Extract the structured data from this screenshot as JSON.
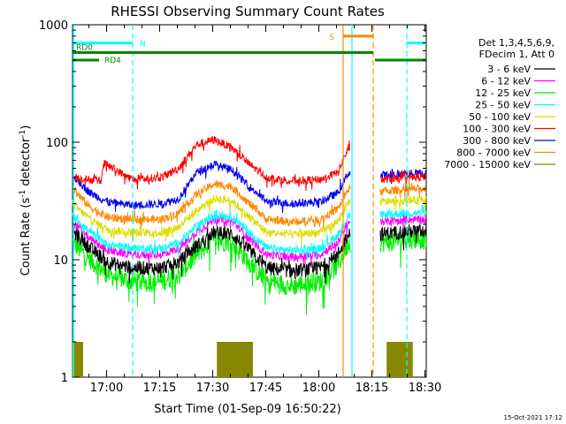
{
  "chart_data": {
    "type": "line",
    "title": "RHESSI Observing Summary Count Rates",
    "xlabel": "Start Time (01-Sep-09 16:50:22)",
    "ylabel": "Count Rate (s⁻¹ detector⁻¹)",
    "ylabel_parts": {
      "base": "Count Rate (s",
      "sup1": "-1",
      "mid": " detector",
      "sup2": "-1",
      "end": ")"
    },
    "yscale": "log",
    "ylim": [
      1,
      1000
    ],
    "xlim_minutes": [
      0,
      100
    ],
    "x_ticks": [
      {
        "minute": 9.63,
        "label": "17:00"
      },
      {
        "minute": 24.63,
        "label": "17:15"
      },
      {
        "minute": 39.63,
        "label": "17:30"
      },
      {
        "minute": 54.63,
        "label": "17:45"
      },
      {
        "minute": 69.63,
        "label": "18:00"
      },
      {
        "minute": 84.63,
        "label": "18:15"
      },
      {
        "minute": 99.63,
        "label": "18:30"
      }
    ],
    "y_ticks": [
      {
        "value": 1,
        "label": "1"
      },
      {
        "value": 10,
        "label": "10"
      },
      {
        "value": 100,
        "label": "100"
      },
      {
        "value": 1000,
        "label": "1000"
      }
    ],
    "legend": {
      "position": "right",
      "header": [
        "Det 1,3,4,5,6,9,",
        "FDecim 1, Att 0"
      ]
    },
    "gaps_minutes": [
      [
        78.5,
        87.0
      ]
    ],
    "series": [
      {
        "name": "3 - 6 keV",
        "color": "#000000",
        "points": [
          [
            0,
            17.5
          ],
          [
            5,
            12.5
          ],
          [
            10,
            9.5
          ],
          [
            17,
            8.5
          ],
          [
            25,
            8.5
          ],
          [
            30,
            9.5
          ],
          [
            35,
            13
          ],
          [
            40,
            17
          ],
          [
            45,
            16.5
          ],
          [
            50,
            12
          ],
          [
            55,
            8.5
          ],
          [
            62,
            8
          ],
          [
            70,
            8.5
          ],
          [
            75,
            11
          ],
          [
            78,
            17
          ],
          [
            87,
            16.5
          ],
          [
            95,
            17.5
          ]
        ]
      },
      {
        "name": "6 - 12 keV",
        "color": "#ff00ff",
        "points": [
          [
            0,
            21
          ],
          [
            5,
            15
          ],
          [
            10,
            12
          ],
          [
            17,
            11
          ],
          [
            25,
            11
          ],
          [
            30,
            12.5
          ],
          [
            35,
            17
          ],
          [
            40,
            22
          ],
          [
            45,
            21.5
          ],
          [
            50,
            15
          ],
          [
            55,
            11
          ],
          [
            62,
            10.5
          ],
          [
            70,
            11
          ],
          [
            75,
            14
          ],
          [
            78,
            21
          ],
          [
            87,
            21
          ],
          [
            95,
            22
          ]
        ]
      },
      {
        "name": "12 - 25 keV",
        "color": "#00ee00",
        "points": [
          [
            0,
            14
          ],
          [
            5,
            10
          ],
          [
            10,
            7.5
          ],
          [
            17,
            6.5
          ],
          [
            25,
            6.5
          ],
          [
            30,
            7.5
          ],
          [
            35,
            11
          ],
          [
            40,
            15
          ],
          [
            45,
            14
          ],
          [
            50,
            9.5
          ],
          [
            55,
            6.5
          ],
          [
            62,
            6
          ],
          [
            70,
            6.5
          ],
          [
            75,
            9
          ],
          [
            78,
            14
          ],
          [
            87,
            14
          ],
          [
            95,
            15
          ]
        ]
      },
      {
        "name": "25 - 50 keV",
        "color": "#00ffff",
        "points": [
          [
            0,
            24
          ],
          [
            5,
            17
          ],
          [
            10,
            13.5
          ],
          [
            17,
            12.5
          ],
          [
            25,
            12.5
          ],
          [
            30,
            14
          ],
          [
            35,
            19
          ],
          [
            40,
            24
          ],
          [
            45,
            23.5
          ],
          [
            50,
            17
          ],
          [
            55,
            12.5
          ],
          [
            62,
            12
          ],
          [
            70,
            12.5
          ],
          [
            75,
            16
          ],
          [
            78,
            24
          ],
          [
            87,
            24
          ],
          [
            95,
            25
          ]
        ]
      },
      {
        "name": "50 - 100 keV",
        "color": "#dddd00",
        "points": [
          [
            0,
            30
          ],
          [
            5,
            22
          ],
          [
            10,
            18
          ],
          [
            17,
            17
          ],
          [
            25,
            17
          ],
          [
            30,
            19
          ],
          [
            35,
            26
          ],
          [
            40,
            33
          ],
          [
            45,
            32
          ],
          [
            50,
            23
          ],
          [
            55,
            17
          ],
          [
            62,
            16.5
          ],
          [
            70,
            17
          ],
          [
            75,
            21
          ],
          [
            78,
            31
          ],
          [
            87,
            31
          ],
          [
            95,
            32
          ]
        ]
      },
      {
        "name": "100 - 300 keV",
        "color": "#ff0000",
        "points": [
          [
            0,
            50
          ],
          [
            5,
            48
          ],
          [
            8,
            47
          ],
          [
            9,
            66
          ],
          [
            17,
            48
          ],
          [
            25,
            50
          ],
          [
            30,
            60
          ],
          [
            35,
            95
          ],
          [
            40,
            105
          ],
          [
            45,
            90
          ],
          [
            50,
            65
          ],
          [
            55,
            50
          ],
          [
            62,
            47
          ],
          [
            70,
            48
          ],
          [
            75,
            55
          ],
          [
            78,
            90
          ],
          [
            87,
            48
          ],
          [
            95,
            50
          ]
        ]
      },
      {
        "name": "300 - 800 keV",
        "color": "#0000ee",
        "points": [
          [
            0,
            52
          ],
          [
            5,
            37
          ],
          [
            10,
            31
          ],
          [
            17,
            29
          ],
          [
            25,
            30
          ],
          [
            30,
            33
          ],
          [
            35,
            55
          ],
          [
            40,
            65
          ],
          [
            45,
            58
          ],
          [
            50,
            42
          ],
          [
            55,
            31
          ],
          [
            62,
            30
          ],
          [
            70,
            31
          ],
          [
            75,
            37
          ],
          [
            78,
            55
          ],
          [
            87,
            52
          ],
          [
            95,
            54
          ]
        ]
      },
      {
        "name": "800 - 7000 keV",
        "color": "#ff8800",
        "points": [
          [
            0,
            40
          ],
          [
            5,
            28
          ],
          [
            10,
            23
          ],
          [
            17,
            22
          ],
          [
            25,
            22
          ],
          [
            30,
            25
          ],
          [
            35,
            36
          ],
          [
            40,
            44
          ],
          [
            45,
            42
          ],
          [
            50,
            30
          ],
          [
            55,
            22
          ],
          [
            62,
            21
          ],
          [
            70,
            22
          ],
          [
            75,
            27
          ],
          [
            78,
            40
          ],
          [
            87,
            38
          ],
          [
            95,
            40
          ]
        ]
      },
      {
        "name": "7000 - 15000 keV",
        "color": "#888800",
        "points": []
      }
    ],
    "decimation_bursts_minutes": [
      [
        0,
        3
      ],
      [
        41,
        51
      ],
      [
        89,
        96
      ]
    ],
    "decimation_level": 2.0,
    "flag_bars": [
      {
        "label": "N",
        "color": "#00ffff",
        "y": 700,
        "segments": [
          [
            0,
            17.0
          ],
          [
            94.5,
            100
          ]
        ]
      },
      {
        "label": "S",
        "color": "#ff8800",
        "y": 800,
        "segments": [
          [
            76.5,
            85.0
          ]
        ]
      },
      {
        "label": "RD0",
        "color": "#008800",
        "y": 580,
        "segments": [
          [
            0,
            85.0
          ]
        ]
      },
      {
        "label": "RD4",
        "color": "#008800",
        "y": 500,
        "segments": [
          [
            0,
            7.5
          ],
          [
            85.5,
            100
          ]
        ]
      }
    ],
    "vertical_lines": [
      {
        "minute": 17.0,
        "color": "#00ffff",
        "style": "dashed"
      },
      {
        "minute": 76.5,
        "color": "#ff8800",
        "style": "solid"
      },
      {
        "minute": 79.0,
        "color": "#00ffff",
        "style": "solid"
      },
      {
        "minute": 85.0,
        "color": "#ff8800",
        "style": "dashed"
      },
      {
        "minute": 94.5,
        "color": "#00ffff",
        "style": "dashed"
      }
    ]
  },
  "timestamp": "15-Oct-2021 17:12"
}
